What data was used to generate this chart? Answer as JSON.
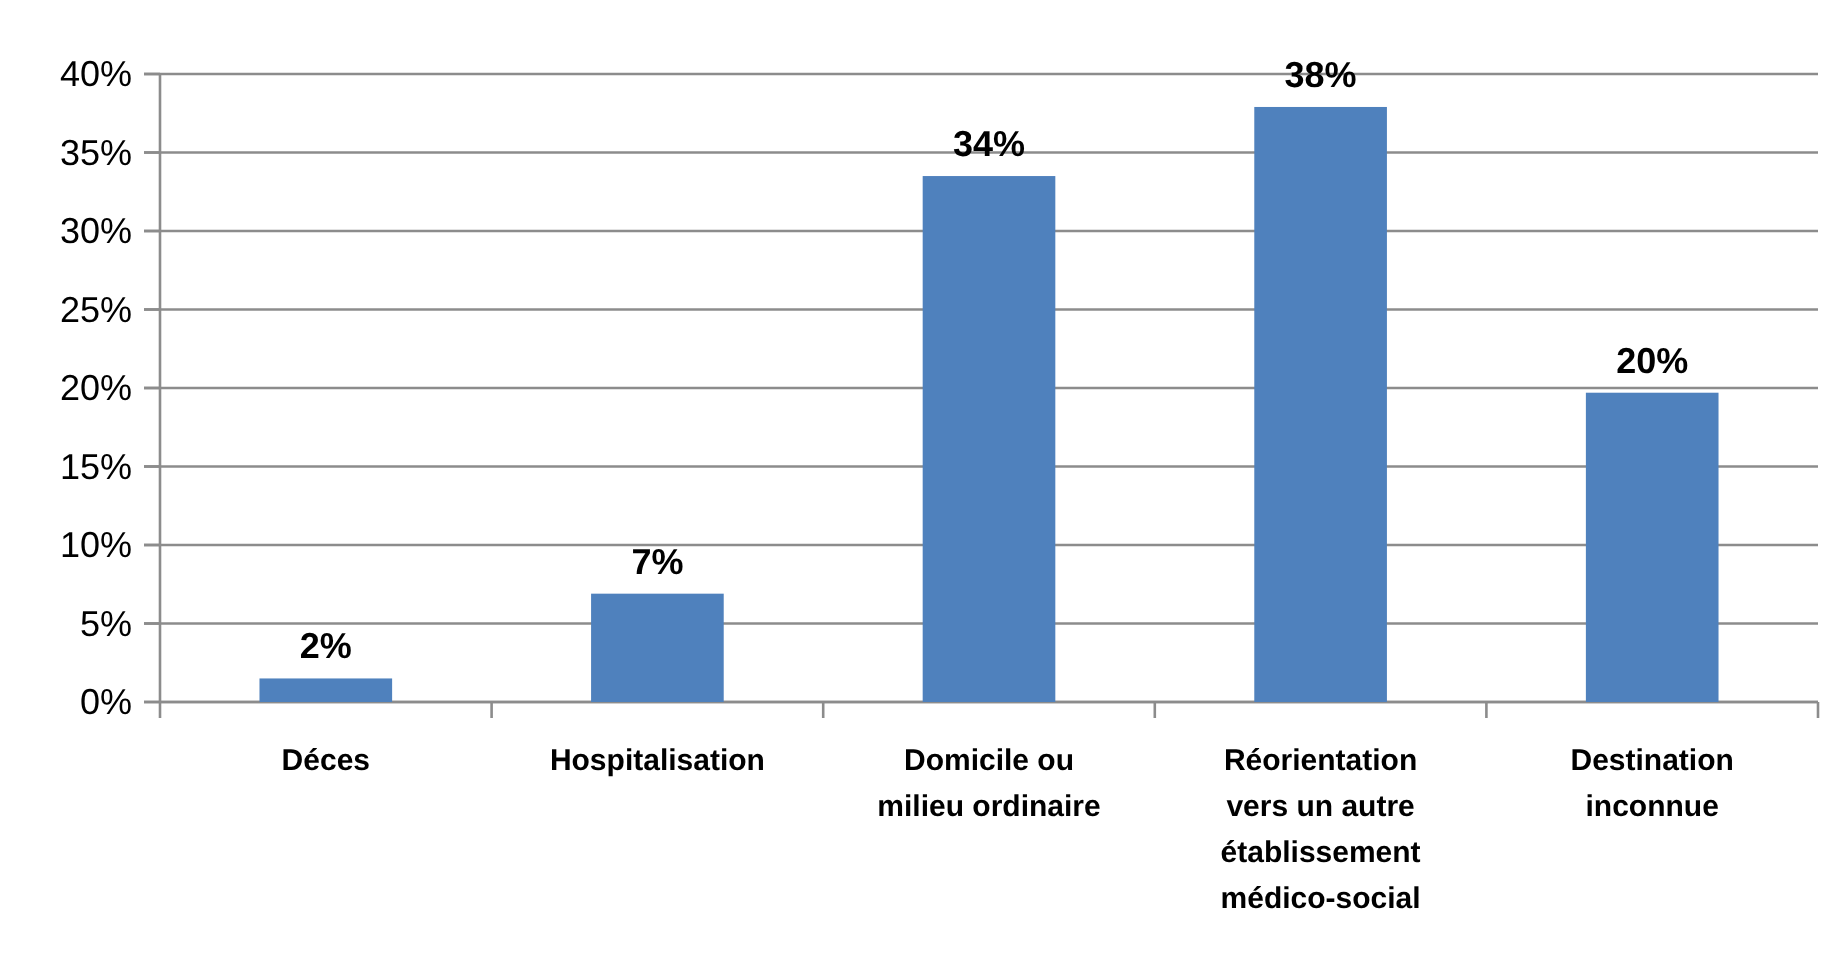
{
  "chart_data": {
    "type": "bar",
    "categories": [
      "Déces",
      "Hospitalisation",
      "Domicile ou milieu ordinaire",
      "Réorientation vers un autre établissement médico-social",
      "Destination inconnue"
    ],
    "values": [
      1.5,
      6.9,
      33.5,
      37.9,
      19.7
    ],
    "color": "#4f81bd",
    "value_labels": [
      "2%",
      "7%",
      "34%",
      "38%",
      "20%"
    ],
    "ylim": [
      0,
      40
    ],
    "yticks": [
      {
        "value": 0,
        "label": "0%"
      },
      {
        "value": 5,
        "label": "5%"
      },
      {
        "value": 10,
        "label": "10%"
      },
      {
        "value": 15,
        "label": "15%"
      },
      {
        "value": 20,
        "label": "20%"
      },
      {
        "value": 25,
        "label": "25%"
      },
      {
        "value": 30,
        "label": "30%"
      },
      {
        "value": 35,
        "label": "35%"
      },
      {
        "value": 40,
        "label": "40%"
      }
    ],
    "grid": "y"
  }
}
